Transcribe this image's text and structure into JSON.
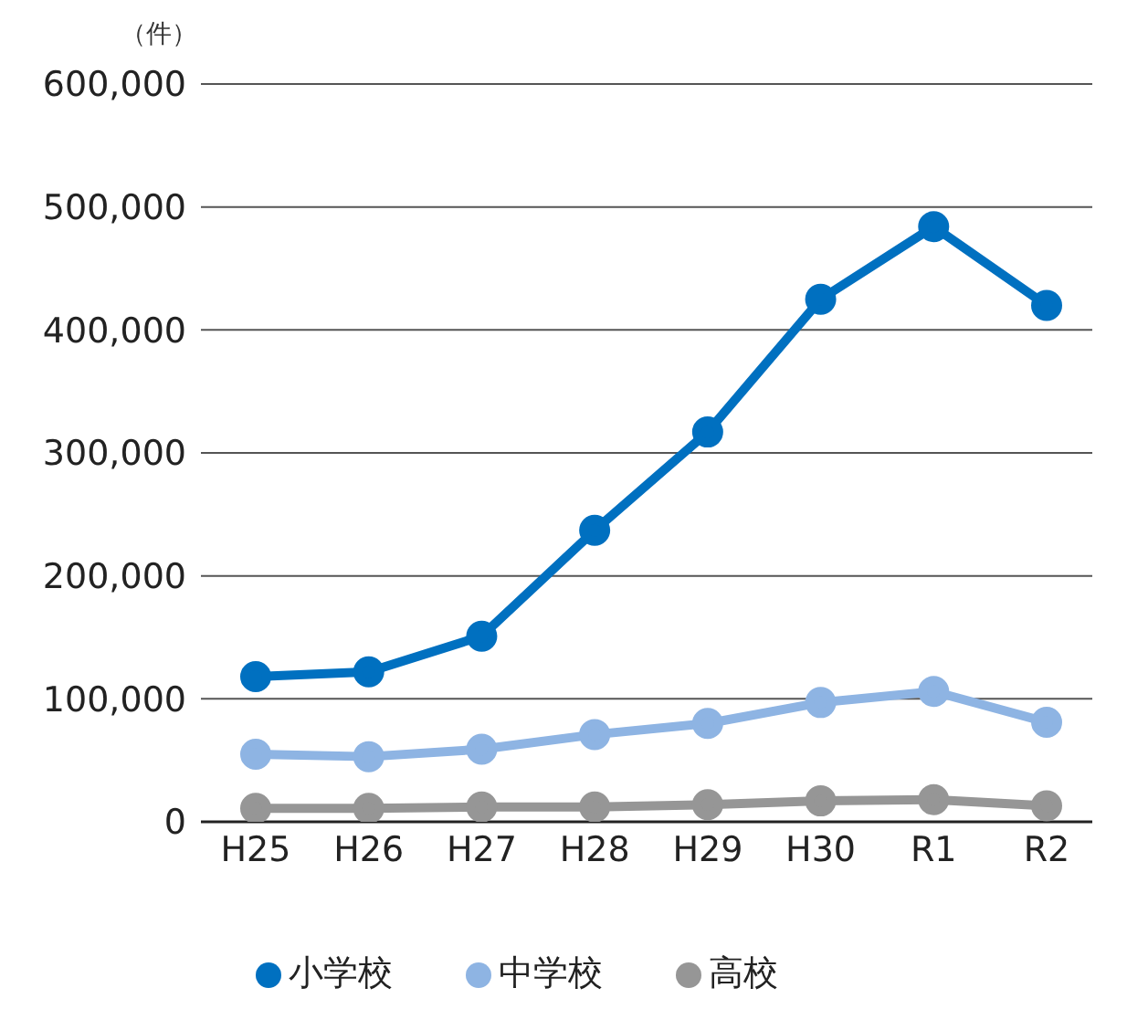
{
  "chart_data": {
    "type": "line",
    "ylabel": "（件）",
    "categories": [
      "H25",
      "H26",
      "H27",
      "H28",
      "H29",
      "H30",
      "R1",
      "R2"
    ],
    "series": [
      {
        "name": "小学校",
        "color": "#0070c0",
        "values": [
          118000,
          122000,
          151000,
          237000,
          317000,
          425000,
          484000,
          420000
        ]
      },
      {
        "name": "中学校",
        "color": "#8eb4e3",
        "values": [
          55000,
          53000,
          59000,
          71000,
          80000,
          97000,
          106000,
          81000
        ]
      },
      {
        "name": "高校",
        "color": "#969696",
        "values": [
          11000,
          11000,
          12000,
          12000,
          14000,
          17000,
          18000,
          13000
        ]
      }
    ],
    "ylim": [
      0,
      600000
    ],
    "yticks": [
      0,
      {
        "value": 100000,
        "label": "100,000"
      },
      {
        "value": 200000,
        "label": "200,000"
      },
      {
        "value": 300000,
        "label": "300,000"
      },
      {
        "value": 400000,
        "label": "400,000"
      },
      {
        "value": 500000,
        "label": "500,000"
      },
      {
        "value": 600000,
        "label": "600,000"
      }
    ],
    "grid": "y",
    "legend": "bottom",
    "marker": "circle",
    "line_style": "solid"
  }
}
